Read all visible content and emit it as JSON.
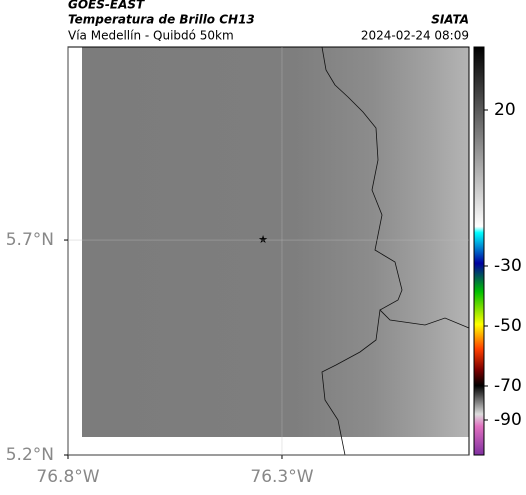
{
  "header": {
    "title": "GOES-EAST",
    "subtitle": "Temperatura de Brillo CH13",
    "source": "SIATA",
    "route": "Vía Medellín - Quibdó 50km",
    "datetime": "2024-02-24 08:09"
  },
  "map": {
    "xlim": [
      -76.8,
      -75.863
    ],
    "ylim": [
      5.2,
      6.149
    ],
    "xticks": [
      {
        "value": -76.8,
        "label": "76.8°W"
      },
      {
        "value": -76.3,
        "label": "76.3°W"
      }
    ],
    "yticks": [
      {
        "value": 5.2,
        "label": "5.2°N"
      },
      {
        "value": 5.7,
        "label": "5.7°N"
      }
    ]
  },
  "colorbar": {
    "ticks": [
      20,
      -30,
      -50,
      -70,
      -90
    ]
  }
}
